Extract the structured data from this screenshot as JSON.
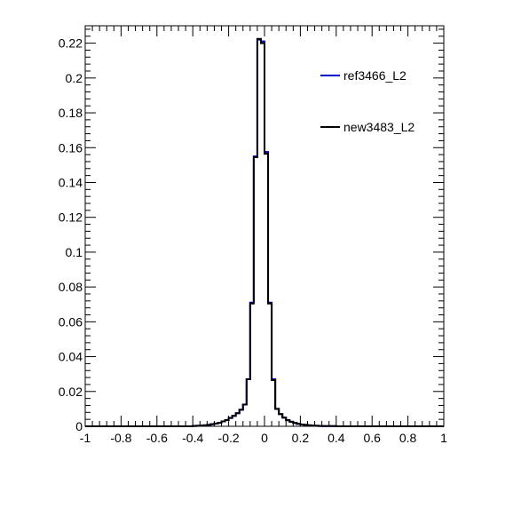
{
  "chart_data": {
    "type": "line",
    "title": "",
    "xlabel": "",
    "ylabel": "",
    "xlim": [
      -1,
      1
    ],
    "ylim": [
      0,
      0.23
    ],
    "grid": false,
    "legend_position": "top-right",
    "x_ticks": [
      -1,
      -0.8,
      -0.6,
      -0.4,
      -0.2,
      0,
      0.2,
      0.4,
      0.6,
      0.8,
      1
    ],
    "x_tick_labels": [
      "-1",
      "-0.8",
      "-0.6",
      "-0.4",
      "-0.2",
      "0",
      "0.2",
      "0.4",
      "0.6",
      "0.8",
      "1"
    ],
    "y_ticks": [
      0,
      0.02,
      0.04,
      0.06,
      0.08,
      0.1,
      0.12,
      0.14,
      0.16,
      0.18,
      0.2,
      0.22
    ],
    "y_tick_labels": [
      "0",
      "0.02",
      "0.04",
      "0.06",
      "0.08",
      "0.1",
      "0.12",
      "0.14",
      "0.16",
      "0.18",
      "0.2",
      "0.22"
    ],
    "bin_edges": [
      -1,
      -0.98,
      -0.96,
      -0.94,
      -0.92,
      -0.9,
      -0.88,
      -0.86,
      -0.84,
      -0.82,
      -0.8,
      -0.78,
      -0.76,
      -0.74,
      -0.72,
      -0.7,
      -0.68,
      -0.66,
      -0.64,
      -0.62,
      -0.6,
      -0.58,
      -0.56,
      -0.54,
      -0.52,
      -0.5,
      -0.48,
      -0.46,
      -0.44,
      -0.42,
      -0.4,
      -0.38,
      -0.36,
      -0.34,
      -0.32,
      -0.3,
      -0.28,
      -0.26,
      -0.24,
      -0.22,
      -0.2,
      -0.18,
      -0.16,
      -0.14,
      -0.12,
      -0.1,
      -0.08,
      -0.06,
      -0.04,
      -0.02,
      0,
      0.02,
      0.04,
      0.06,
      0.08,
      0.1,
      0.12,
      0.14,
      0.16,
      0.18,
      0.2,
      0.22,
      0.24,
      0.26,
      0.28,
      0.3,
      0.32,
      0.34,
      0.36,
      0.38,
      0.4,
      0.42,
      0.44,
      0.46,
      0.48,
      0.5,
      0.52,
      0.54,
      0.56,
      0.58,
      0.6,
      0.62,
      0.64,
      0.66,
      0.68,
      0.7,
      0.72,
      0.74,
      0.76,
      0.78,
      0.8,
      0.82,
      0.84,
      0.86,
      0.88,
      0.9,
      0.92,
      0.94,
      0.96,
      0.98,
      1
    ],
    "series": [
      {
        "name": "ref3466_L2",
        "color": "#0000cc",
        "values": [
          0,
          0,
          0,
          0,
          0,
          0,
          0,
          0,
          0,
          0,
          0,
          0,
          0,
          0,
          0,
          0,
          0,
          0,
          0,
          0,
          0,
          0,
          0,
          0,
          0,
          0,
          0,
          0,
          0,
          0,
          0.0002,
          0.0003,
          0.0004,
          0.0006,
          0.0008,
          0.0012,
          0.0016,
          0.002,
          0.0028,
          0.0036,
          0.0048,
          0.006,
          0.0075,
          0.0095,
          0.0125,
          0.027,
          0.071,
          0.155,
          0.222,
          0.221,
          0.1575,
          0.071,
          0.027,
          0.01,
          0.007,
          0.005,
          0.0035,
          0.0026,
          0.0019,
          0.0014,
          0.001,
          0.0008,
          0.0006,
          0.0004,
          0.0003,
          0.0002,
          0.0001,
          0.0001,
          0.0001,
          0.0001,
          0,
          0,
          0,
          0,
          0,
          0,
          0,
          0,
          0,
          0,
          0,
          0,
          0,
          0,
          0,
          0,
          0,
          0,
          0,
          0,
          0,
          0,
          0,
          0,
          0,
          0,
          0,
          0,
          0,
          0
        ]
      },
      {
        "name": "new3483_L2",
        "color": "#000000",
        "values": [
          0,
          0,
          0,
          0,
          0,
          0,
          0,
          0,
          0,
          0,
          0,
          0,
          0,
          0,
          0,
          0,
          0,
          0,
          0,
          0,
          0,
          0,
          0,
          0,
          0,
          0,
          0,
          0,
          0,
          0,
          0.0002,
          0.0003,
          0.0004,
          0.0006,
          0.0008,
          0.0012,
          0.0016,
          0.002,
          0.0028,
          0.0036,
          0.0048,
          0.006,
          0.0075,
          0.0095,
          0.0125,
          0.027,
          0.0705,
          0.1545,
          0.2225,
          0.22,
          0.1565,
          0.0705,
          0.0265,
          0.01,
          0.007,
          0.005,
          0.0035,
          0.0026,
          0.0019,
          0.0014,
          0.001,
          0.0008,
          0.0006,
          0.0004,
          0.0003,
          0.0002,
          0.0001,
          0.0001,
          0.0001,
          0.0001,
          0,
          0,
          0,
          0,
          0,
          0,
          0,
          0,
          0,
          0,
          0,
          0,
          0,
          0,
          0,
          0,
          0,
          0,
          0,
          0,
          0,
          0,
          0,
          0,
          0,
          0,
          0,
          0,
          0,
          0
        ]
      }
    ]
  }
}
